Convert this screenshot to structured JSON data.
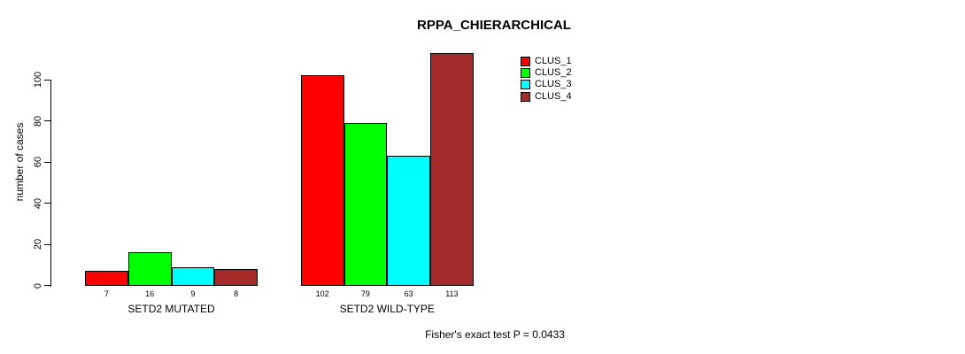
{
  "chart_data": {
    "type": "bar",
    "title": "RPPA_CHIERARCHICAL",
    "ylabel": "number of cases",
    "xlabel": "",
    "annotation": "Fisher's exact test P = 0.0433",
    "categories": [
      "SETD2 MUTATED",
      "SETD2 WILD-TYPE"
    ],
    "series": [
      {
        "name": "CLUS_1",
        "color": "#FF0000",
        "values": [
          7,
          102
        ]
      },
      {
        "name": "CLUS_2",
        "color": "#00FF00",
        "values": [
          16,
          79
        ]
      },
      {
        "name": "CLUS_3",
        "color": "#00FFFF",
        "values": [
          9,
          63
        ]
      },
      {
        "name": "CLUS_4",
        "color": "#A52A2A",
        "values": [
          8,
          113
        ]
      }
    ],
    "yticks": [
      0,
      20,
      40,
      60,
      80,
      100
    ],
    "ylim": [
      0,
      113
    ],
    "grid": false,
    "bar_value_labels_shown": true,
    "legend": {
      "position": "top-right",
      "entries": [
        "CLUS_1",
        "CLUS_2",
        "CLUS_3",
        "CLUS_4"
      ]
    }
  }
}
